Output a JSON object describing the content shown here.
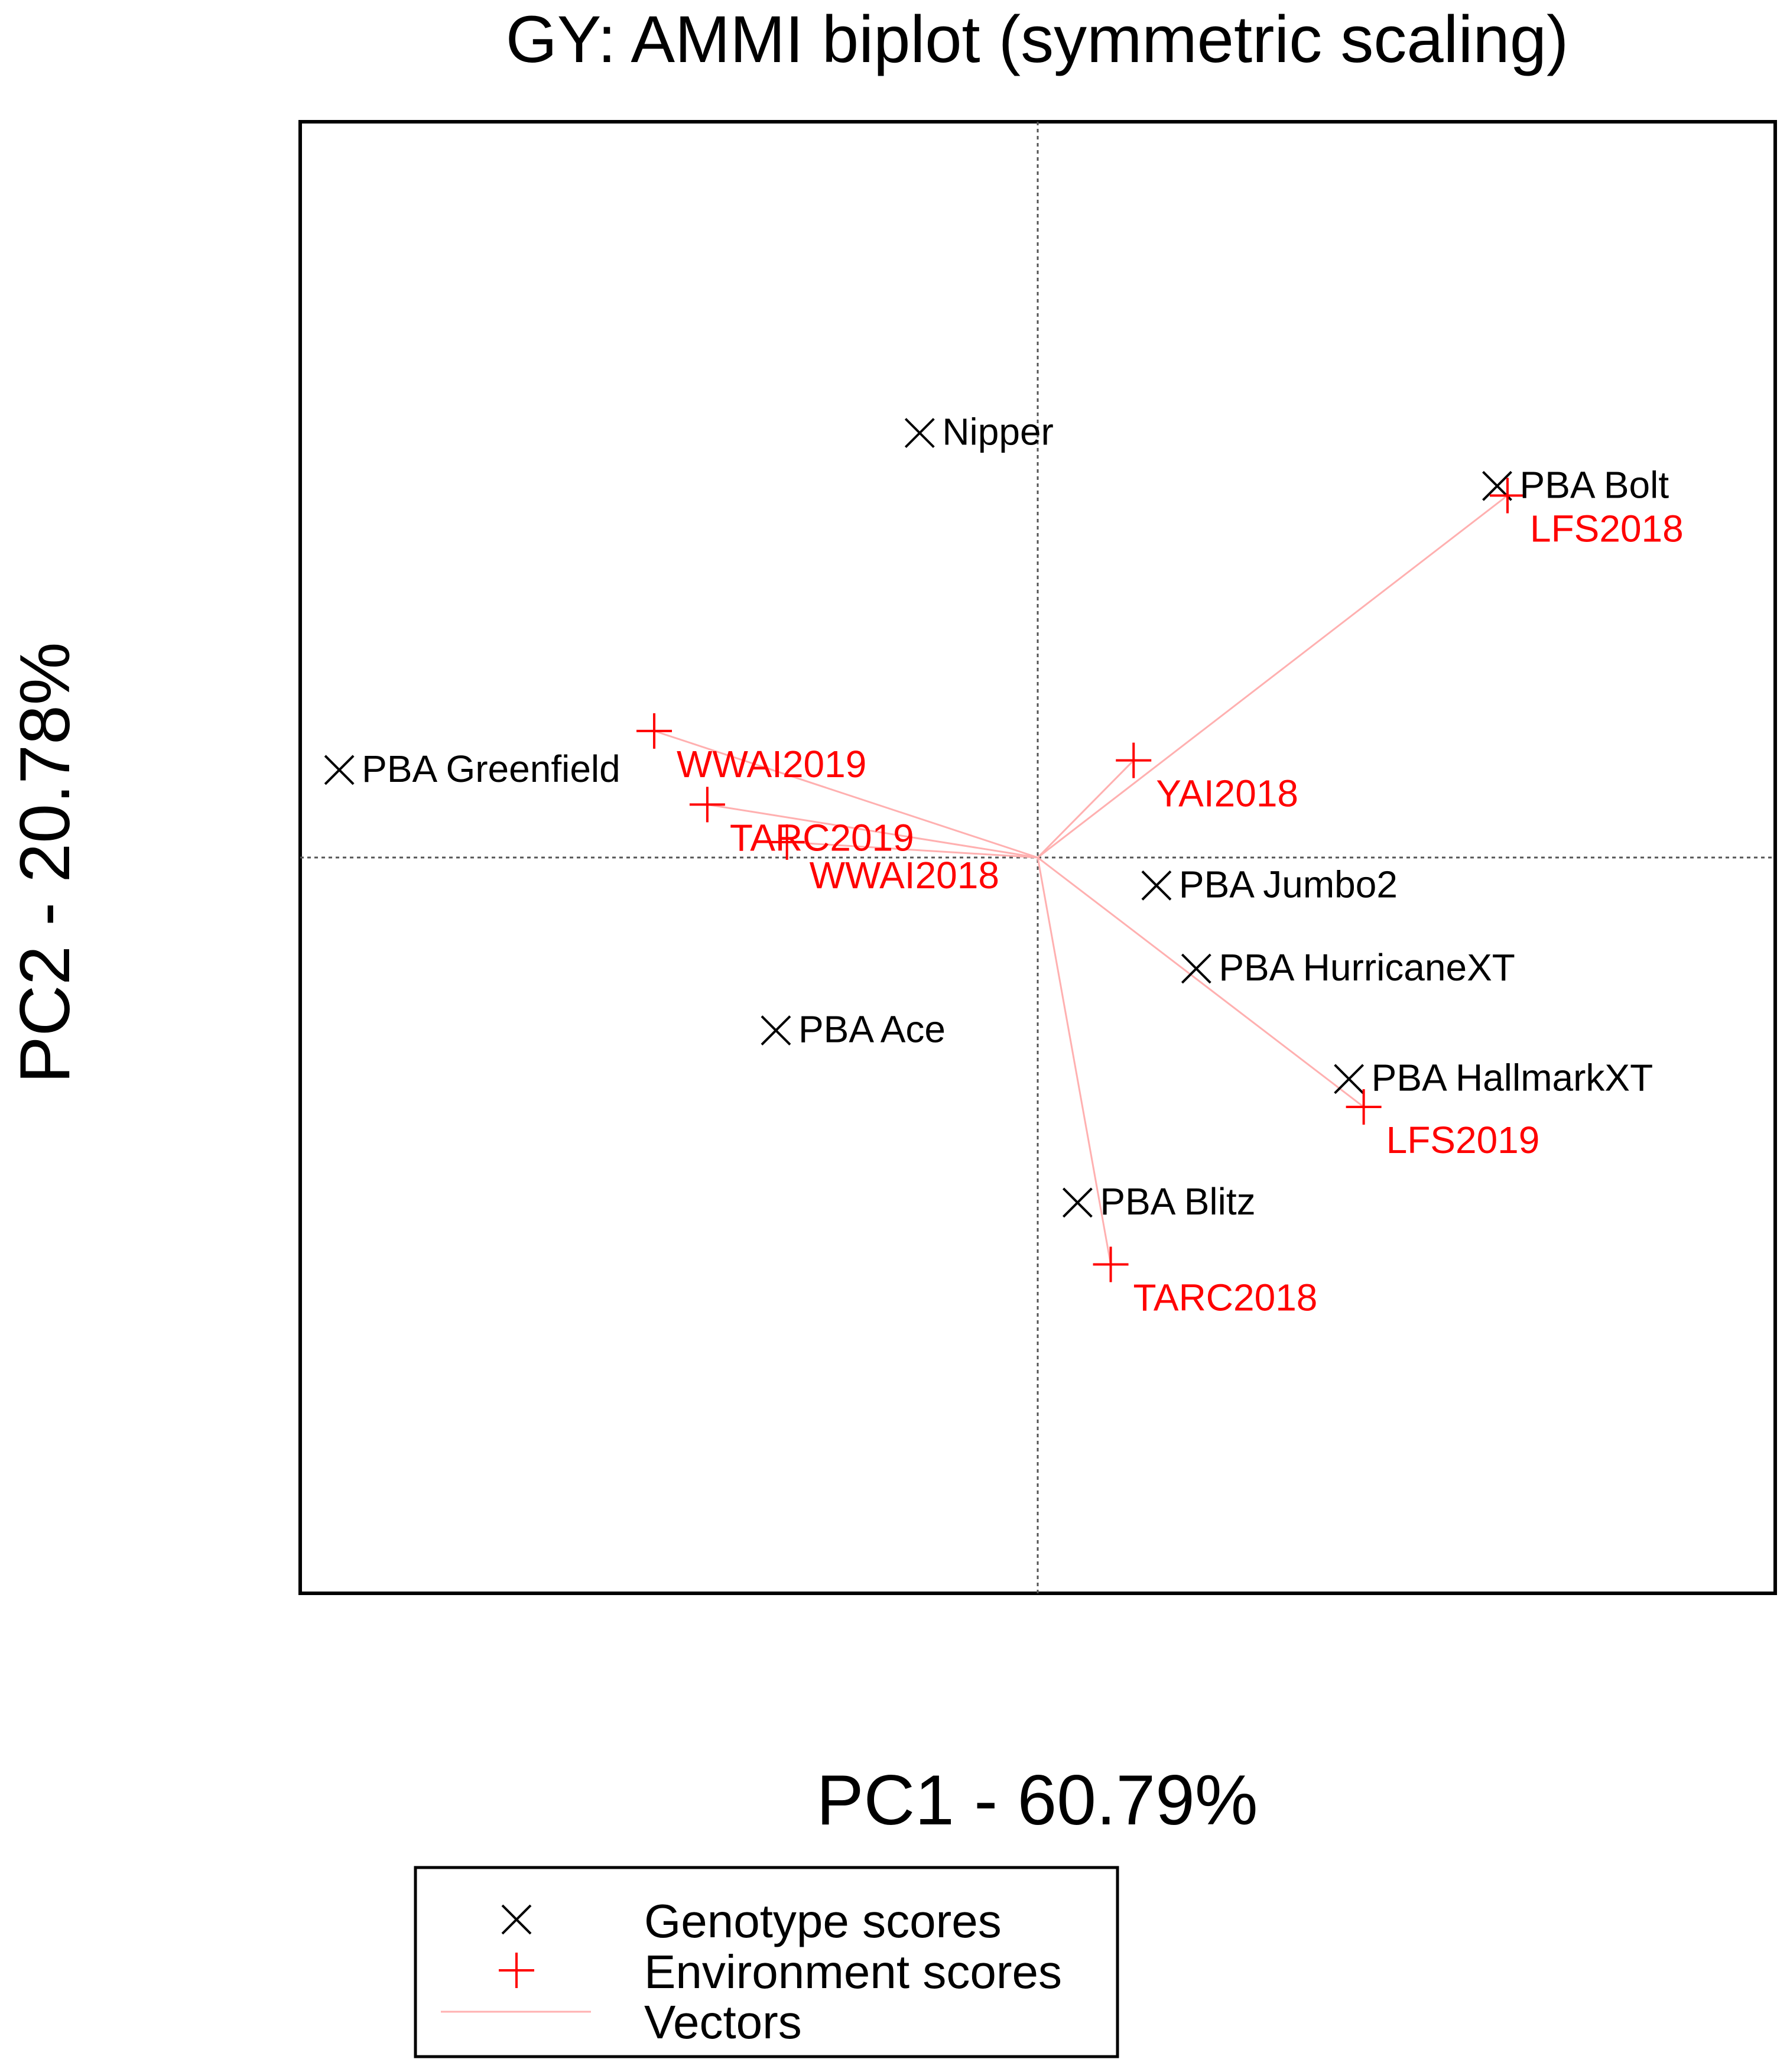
{
  "chart_data": {
    "type": "scatter",
    "title": "GY: AMMI biplot (symmetric scaling)",
    "xlabel": "PC1 - 60.79%",
    "ylabel": "PC2 - 20.78%",
    "xlim": [
      -1,
      1
    ],
    "ylim": [
      -1,
      1
    ],
    "grid": false,
    "reference_lines": {
      "x": 0,
      "y": 0,
      "style": "dotted"
    },
    "legend": {
      "placement": "bottom",
      "entries": [
        {
          "label": "Genotype scores",
          "marker": "x",
          "color": "#000000"
        },
        {
          "label": "Environment scores",
          "marker": "+",
          "color": "#ff0000"
        },
        {
          "label": "Vectors",
          "marker": "line",
          "color": "#ffb0b0"
        }
      ]
    },
    "series": [
      {
        "name": "Genotype scores",
        "marker": "x",
        "color": "#000000",
        "points": [
          {
            "label": "Nipper",
            "x": -0.16,
            "y": 0.577
          },
          {
            "label": "PBA Bolt",
            "x": 0.623,
            "y": 0.505
          },
          {
            "label": "PBA Greenfield",
            "x": -0.947,
            "y": 0.119
          },
          {
            "label": "PBA Jumbo2",
            "x": 0.161,
            "y": -0.038
          },
          {
            "label": "PBA HurricaneXT",
            "x": 0.215,
            "y": -0.151
          },
          {
            "label": "PBA Ace",
            "x": -0.355,
            "y": -0.235
          },
          {
            "label": "PBA HallmarkXT",
            "x": 0.422,
            "y": -0.301
          },
          {
            "label": "PBA Blitz",
            "x": 0.054,
            "y": -0.469
          }
        ]
      },
      {
        "name": "Environment scores",
        "marker": "+",
        "color": "#ff0000",
        "vectors": true,
        "points": [
          {
            "label": "LFS2018",
            "x": 0.637,
            "y": 0.492
          },
          {
            "label": "WWAI2019",
            "x": -0.52,
            "y": 0.172
          },
          {
            "label": "YAI2018",
            "x": 0.13,
            "y": 0.132
          },
          {
            "label": "TARC2019",
            "x": -0.448,
            "y": 0.072
          },
          {
            "label": "WWAI2018",
            "x": -0.34,
            "y": 0.021
          },
          {
            "label": "LFS2019",
            "x": 0.442,
            "y": -0.339
          },
          {
            "label": "TARC2018",
            "x": 0.099,
            "y": -0.553
          }
        ]
      }
    ]
  }
}
